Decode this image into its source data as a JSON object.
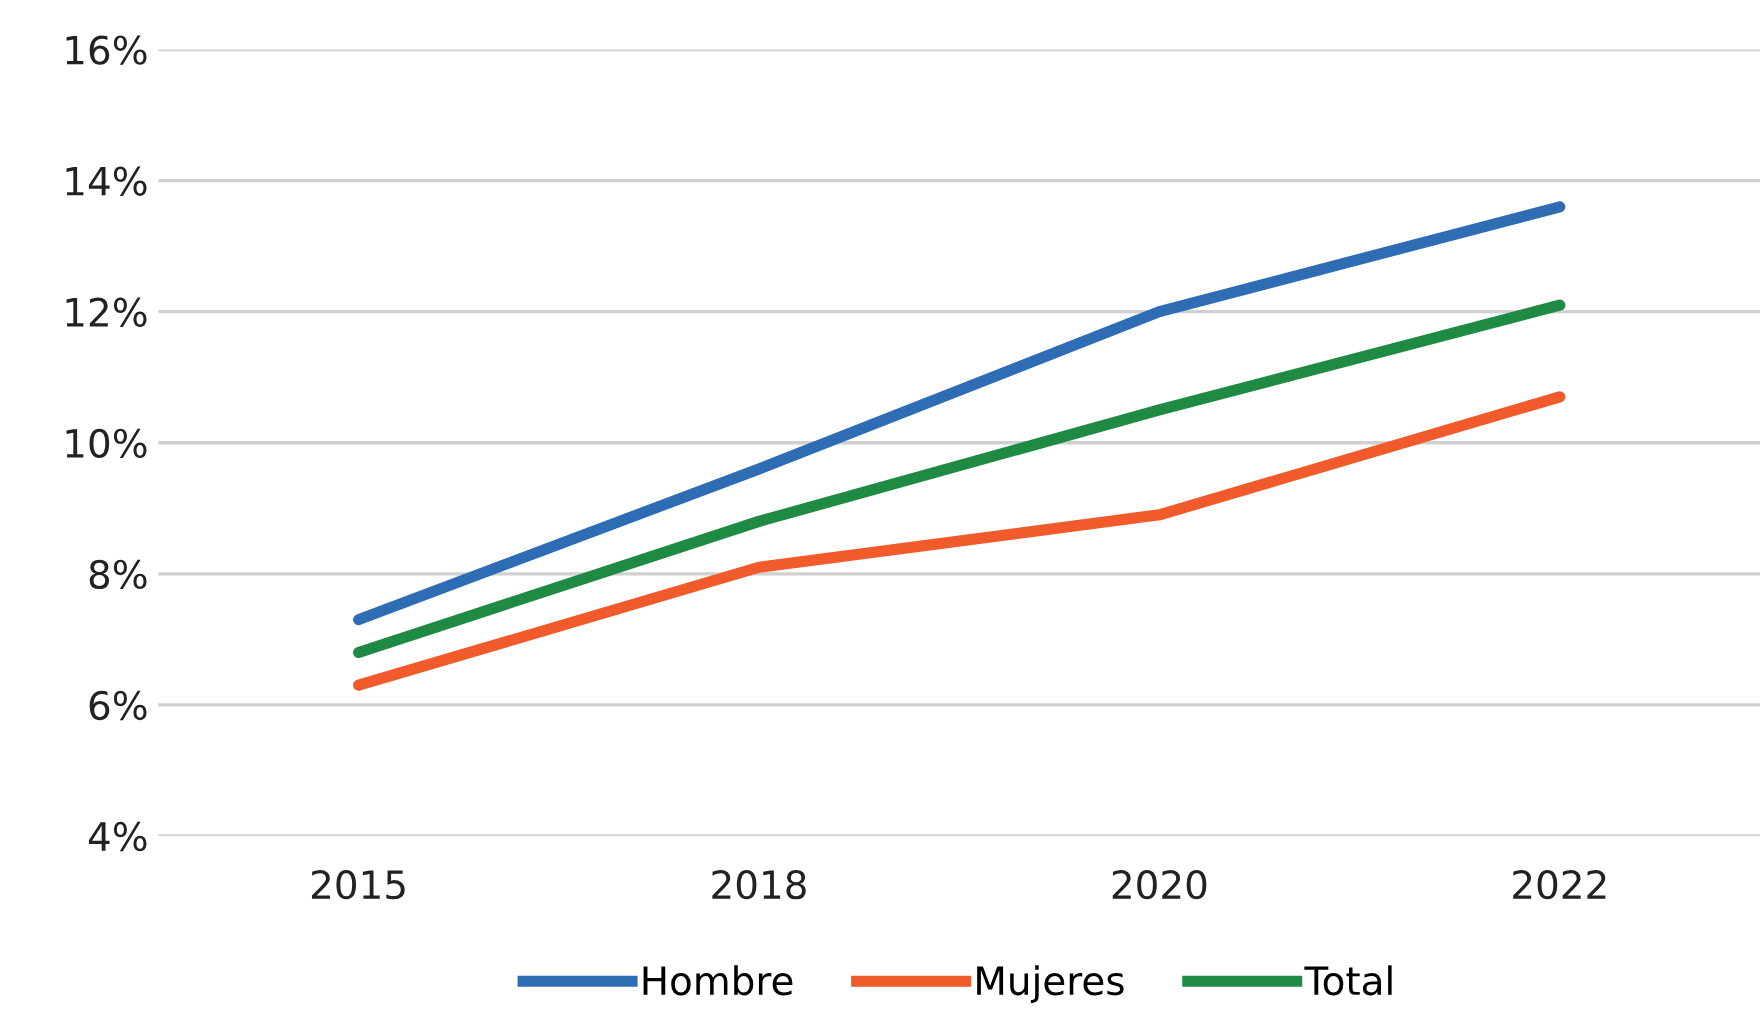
{
  "chart_data": {
    "type": "line",
    "categories": [
      "2015",
      "2018",
      "2020",
      "2022"
    ],
    "series": [
      {
        "name": "Hombre",
        "color": "#2e6db4",
        "values": [
          7.3,
          9.6,
          12.0,
          13.6
        ]
      },
      {
        "name": "Mujeres",
        "color": "#f15a2b",
        "values": [
          6.3,
          8.1,
          8.9,
          10.7
        ]
      },
      {
        "name": "Total",
        "color": "#1e8a43",
        "values": [
          6.8,
          8.8,
          10.5,
          12.1
        ]
      }
    ],
    "ylim": [
      4,
      16
    ],
    "yticks": [
      {
        "value": 4,
        "label": "4%"
      },
      {
        "value": 6,
        "label": "6%"
      },
      {
        "value": 8,
        "label": "8%"
      },
      {
        "value": 10,
        "label": "10%"
      },
      {
        "value": 12,
        "label": "12%"
      },
      {
        "value": 14,
        "label": "14%"
      },
      {
        "value": 16,
        "label": "16%"
      }
    ],
    "grid": "y",
    "legend": "bottom",
    "marker": "none",
    "line_style": "solid"
  }
}
